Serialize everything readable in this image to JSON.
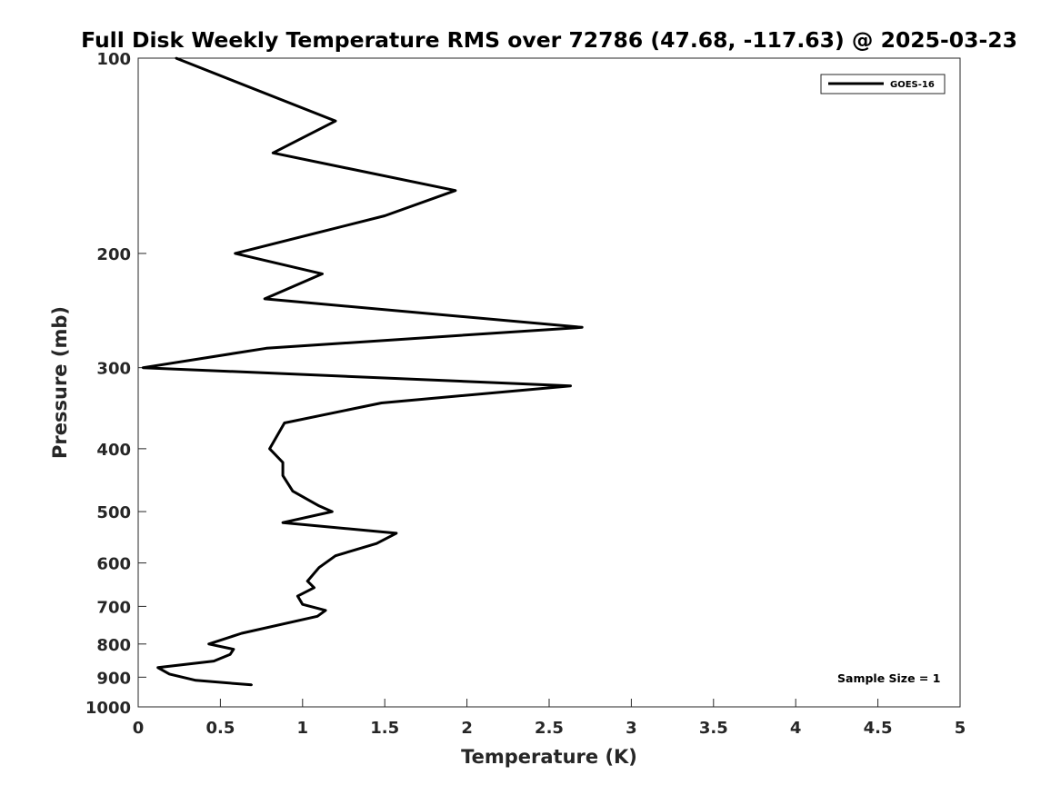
{
  "chart_data": {
    "type": "line",
    "title": "Full Disk Weekly Temperature RMS over 72786 (47.68, -117.63) @ 2025-03-23",
    "xlabel": "Temperature (K)",
    "ylabel": "Pressure (mb)",
    "xlim": [
      0,
      5
    ],
    "ylim": [
      100,
      1000
    ],
    "y_scale": "log",
    "y_reversed": true,
    "x_ticks": [
      0,
      0.5,
      1,
      1.5,
      2,
      2.5,
      3,
      3.5,
      4,
      4.5,
      5
    ],
    "x_tick_labels": [
      "0",
      "0.5",
      "1",
      "1.5",
      "2",
      "2.5",
      "3",
      "3.5",
      "4",
      "4.5",
      "5"
    ],
    "y_ticks": [
      100,
      200,
      300,
      400,
      500,
      600,
      700,
      800,
      900,
      1000
    ],
    "y_tick_labels": [
      "100",
      "200",
      "300",
      "400",
      "500",
      "600",
      "700",
      "800",
      "900",
      "1000"
    ],
    "grid": false,
    "legend_position": "top-right",
    "series": [
      {
        "name": "GOES-16",
        "color": "#000000",
        "points": [
          {
            "t": 0.23,
            "p": 100
          },
          {
            "t": 1.2,
            "p": 125
          },
          {
            "t": 0.82,
            "p": 140
          },
          {
            "t": 1.93,
            "p": 160
          },
          {
            "t": 1.5,
            "p": 175
          },
          {
            "t": 0.59,
            "p": 200
          },
          {
            "t": 1.12,
            "p": 215
          },
          {
            "t": 0.77,
            "p": 235
          },
          {
            "t": 2.7,
            "p": 260
          },
          {
            "t": 0.78,
            "p": 280
          },
          {
            "t": 0.03,
            "p": 300
          },
          {
            "t": 2.63,
            "p": 320
          },
          {
            "t": 1.48,
            "p": 340
          },
          {
            "t": 0.89,
            "p": 365
          },
          {
            "t": 0.8,
            "p": 400
          },
          {
            "t": 0.88,
            "p": 420
          },
          {
            "t": 0.88,
            "p": 440
          },
          {
            "t": 0.94,
            "p": 465
          },
          {
            "t": 1.1,
            "p": 490
          },
          {
            "t": 1.18,
            "p": 500
          },
          {
            "t": 0.88,
            "p": 520
          },
          {
            "t": 1.57,
            "p": 540
          },
          {
            "t": 1.45,
            "p": 560
          },
          {
            "t": 1.2,
            "p": 585
          },
          {
            "t": 1.1,
            "p": 610
          },
          {
            "t": 1.03,
            "p": 640
          },
          {
            "t": 1.07,
            "p": 655
          },
          {
            "t": 0.97,
            "p": 675
          },
          {
            "t": 1.0,
            "p": 695
          },
          {
            "t": 1.14,
            "p": 710
          },
          {
            "t": 1.09,
            "p": 725
          },
          {
            "t": 0.63,
            "p": 770
          },
          {
            "t": 0.43,
            "p": 800
          },
          {
            "t": 0.58,
            "p": 815
          },
          {
            "t": 0.56,
            "p": 830
          },
          {
            "t": 0.46,
            "p": 850
          },
          {
            "t": 0.12,
            "p": 870
          },
          {
            "t": 0.19,
            "p": 890
          },
          {
            "t": 0.35,
            "p": 910
          },
          {
            "t": 0.69,
            "p": 925
          }
        ]
      }
    ],
    "annotation": "Sample Size = 1"
  }
}
